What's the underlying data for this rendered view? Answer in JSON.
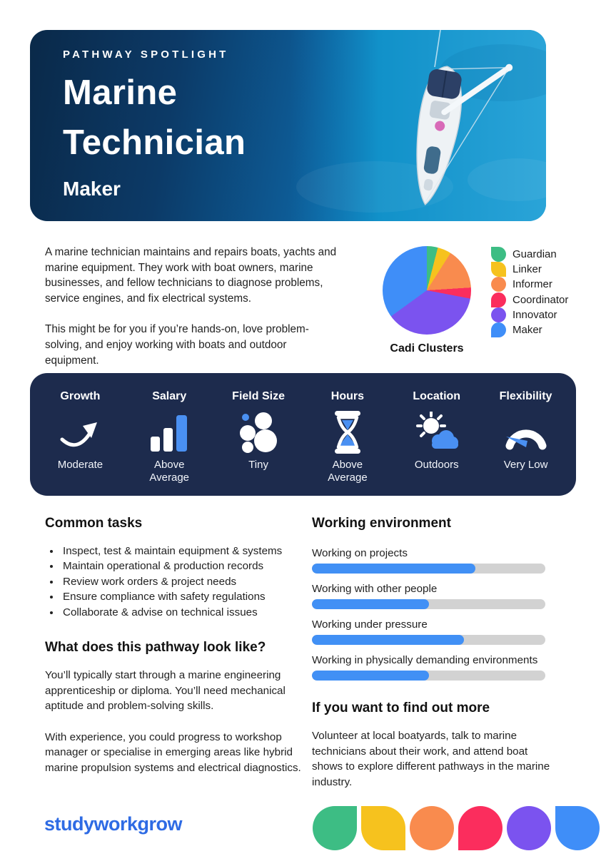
{
  "header": {
    "eyebrow": "PATHWAY SPOTLIGHT",
    "title_line1": "Marine",
    "title_line2": "Technician",
    "cluster_label": "Maker"
  },
  "intro": {
    "para1": "A marine technician maintains and repairs boats, yachts and marine equipment. They work with boat owners, marine businesses, and fellow technicians to diagnose problems, service engines, and fix electrical systems.",
    "para2": "This might be for you if you’re hands-on, love problem-solving, and enjoy working with boats and outdoor equipment."
  },
  "chart_data": [
    {
      "type": "pie",
      "title": "Cadi Clusters",
      "labels": [
        "Guardian",
        "Linker",
        "Informer",
        "Coordinator",
        "Innovator",
        "Maker"
      ],
      "values": [
        4,
        5,
        15,
        4,
        37,
        35
      ],
      "colors": [
        "#3dbd84",
        "#f6c21e",
        "#f98b4e",
        "#fb2d5d",
        "#7b53ef",
        "#3f8ef8"
      ],
      "legend_position": "right",
      "start_angle_deg": 0,
      "direction": "clockwise"
    },
    {
      "type": "bar",
      "orientation": "horizontal",
      "categories": [
        "Working on projects",
        "Working with other people",
        "Working under pressure",
        "Working in physically demanding environments"
      ],
      "values": [
        70,
        50,
        65,
        50
      ],
      "xlim": [
        0,
        100
      ],
      "bar_color": "#4190f5",
      "track_color": "#d2d2d2"
    }
  ],
  "stats": {
    "panel_color": "#1d2b4d",
    "accent_color": "#4a90f2",
    "items": [
      {
        "label": "Growth",
        "value": "Moderate",
        "icon": "growth-trend-icon"
      },
      {
        "label": "Salary",
        "value": "Above Average",
        "icon": "bar-chart-icon"
      },
      {
        "label": "Field Size",
        "value": "Tiny",
        "icon": "bubble-cluster-icon"
      },
      {
        "label": "Hours",
        "value": "Above Average",
        "icon": "hourglass-icon"
      },
      {
        "label": "Location",
        "value": "Outdoors",
        "icon": "sun-cloud-icon"
      },
      {
        "label": "Flexibility",
        "value": "Very Low",
        "icon": "gauge-icon"
      }
    ]
  },
  "tasks": {
    "heading": "Common tasks",
    "items": [
      "Inspect, test & maintain equipment & systems",
      "Maintain operational & production records",
      "Review work orders & project needs",
      "Ensure compliance with safety regulations",
      "Collaborate & advise on technical issues"
    ]
  },
  "pathway": {
    "heading": "What does this pathway look like?",
    "para1": "You’ll typically start through a marine engineering apprenticeship or diploma. You’ll need mechanical aptitude and problem-solving skills.",
    "para2": "With experience, you could progress to workshop manager or specialise in emerging areas like hybrid marine propulsion systems and electrical diagnostics."
  },
  "environment": {
    "heading": "Working environment"
  },
  "more": {
    "heading": "If you want to find out more",
    "para": "Volunteer at local boatyards, talk to marine technicians about their work, and attend boat shows to explore different pathways in the marine industry."
  },
  "footer": {
    "logo": "studyworkgrow",
    "logo_color": "#2e6be4",
    "shape_colors": [
      "#3dbd84",
      "#f6c21e",
      "#f98b4e",
      "#fb2d5d",
      "#7b53ef",
      "#3f8ef8"
    ]
  }
}
